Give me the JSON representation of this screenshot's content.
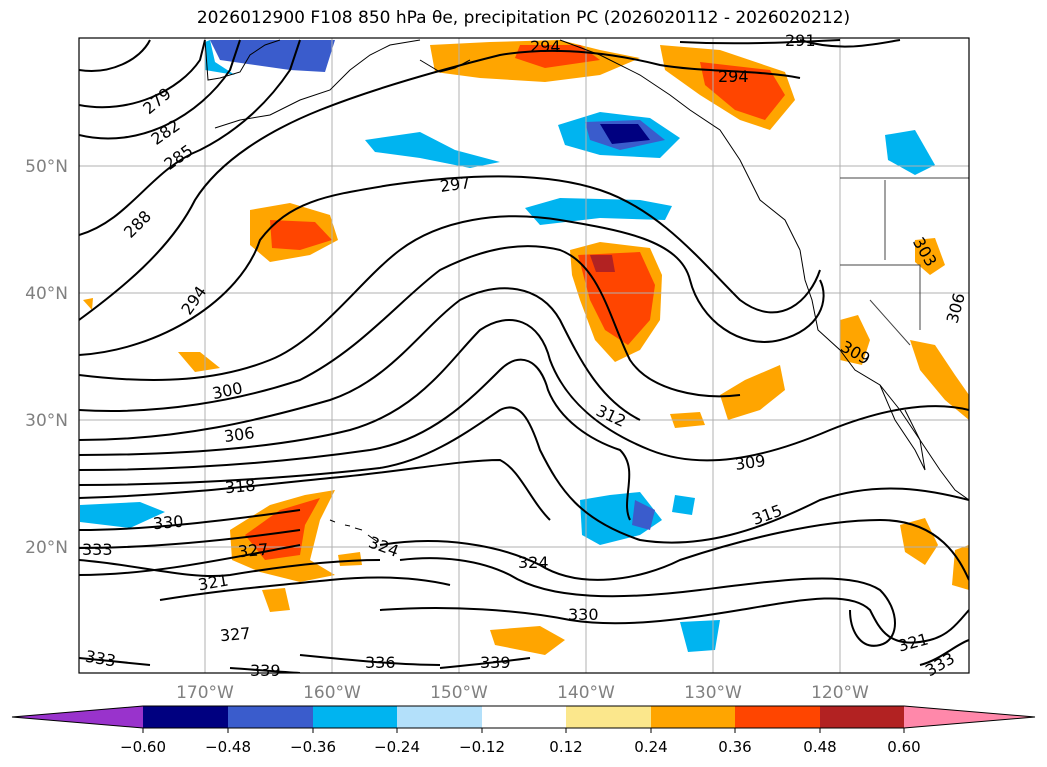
{
  "title": "2026012900 F108 850 hPa θe, precipitation PC (2026020112 - 2026020212)",
  "map": {
    "lat_labels": [
      "50°N",
      "40°N",
      "30°N",
      "20°N"
    ],
    "lon_labels": [
      "170°W",
      "160°W",
      "150°W",
      "140°W",
      "130°W",
      "120°W"
    ],
    "contour_labels": [
      "279",
      "282",
      "285",
      "288",
      "294",
      "291",
      "294",
      "294",
      "297",
      "300",
      "306",
      "318",
      "330",
      "333",
      "327",
      "321",
      "327",
      "333",
      "339",
      "324",
      "336",
      "339",
      "324",
      "330",
      "312",
      "309",
      "315",
      "321",
      "333",
      "309",
      "306",
      "303"
    ]
  },
  "colorbar": {
    "ticks": [
      "−0.60",
      "−0.48",
      "−0.36",
      "−0.24",
      "−0.12",
      "0.12",
      "0.24",
      "0.36",
      "0.48",
      "0.60"
    ],
    "colors": {
      "under": "#9933cc",
      "bins": [
        "#000080",
        "#3a5ccc",
        "#00b4f0",
        "#b3e0fa",
        "#ffffff",
        "#fbe78c",
        "#ffa500",
        "#ff4500",
        "#b22222"
      ],
      "over": "#ff88aa"
    }
  }
}
